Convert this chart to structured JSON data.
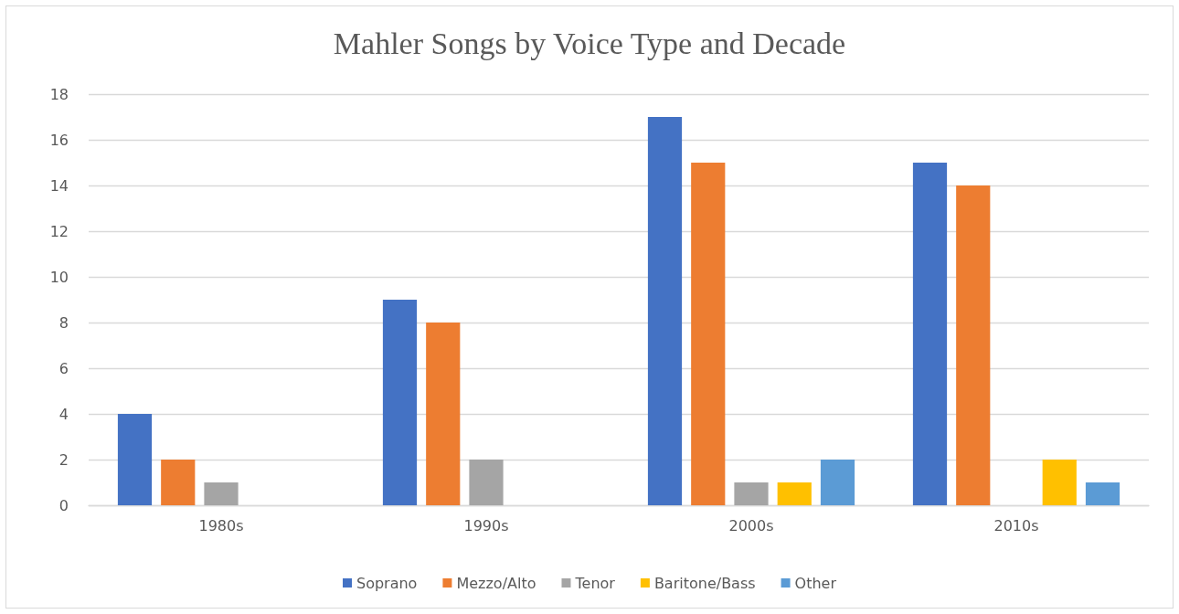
{
  "chart_data": {
    "type": "bar",
    "title": "Mahler Songs by Voice Type and Decade",
    "categories": [
      "1980s",
      "1990s",
      "2000s",
      "2010s"
    ],
    "series": [
      {
        "name": "Soprano",
        "color": "#4472c4",
        "values": [
          4,
          9,
          17,
          15
        ]
      },
      {
        "name": "Mezzo/Alto",
        "color": "#ed7d31",
        "values": [
          2,
          8,
          15,
          14
        ]
      },
      {
        "name": "Tenor",
        "color": "#a5a5a5",
        "values": [
          1,
          2,
          1,
          0
        ]
      },
      {
        "name": "Baritone/Bass",
        "color": "#ffc000",
        "values": [
          0,
          0,
          1,
          2
        ]
      },
      {
        "name": "Other",
        "color": "#5b9bd5",
        "values": [
          0,
          0,
          2,
          1
        ]
      }
    ],
    "ylim": [
      0,
      18
    ],
    "yticks": [
      0,
      2,
      4,
      6,
      8,
      10,
      12,
      14,
      16,
      18
    ],
    "grid": "y",
    "legend": "bottom"
  }
}
